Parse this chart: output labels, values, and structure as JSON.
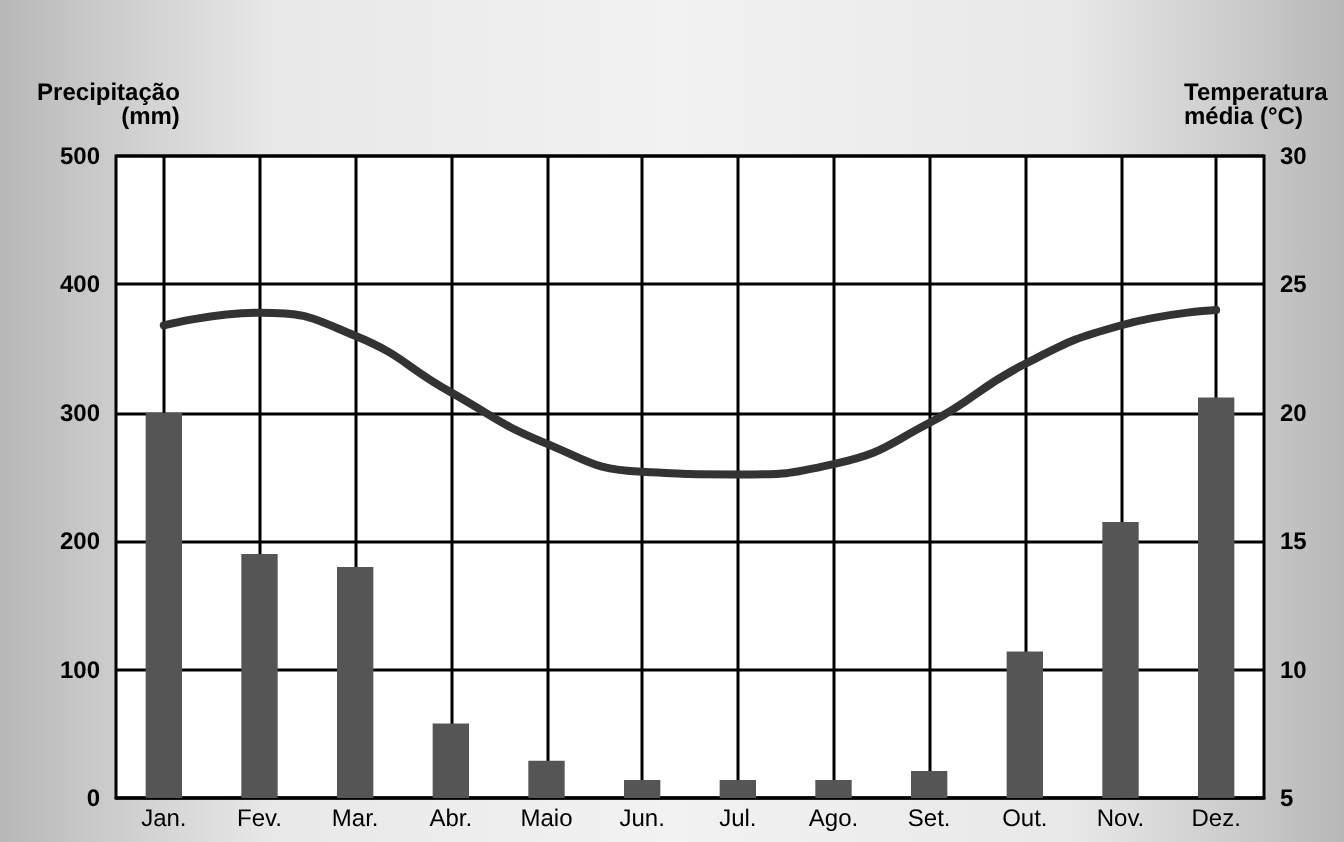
{
  "chart_data": {
    "type": "bar",
    "ylabel": "Precipitação\n(mm)",
    "y2label": "Temperatura\nmédia (°C)",
    "categories": [
      "Jan.",
      "Fev.",
      "Mar.",
      "Abr.",
      "Maio",
      "Jun.",
      "Jul.",
      "Ago.",
      "Set.",
      "Out.",
      "Nov.",
      "Dez."
    ],
    "series": [
      {
        "color": "#555555",
        "values": [
          300,
          190,
          180,
          58,
          29,
          14,
          14,
          14,
          21,
          114,
          215,
          312
        ]
      },
      {
        "type": "line",
        "axis": "y2",
        "color": "#333333",
        "values": [
          23.4,
          23.9,
          23.0,
          20.8,
          18.8,
          17.7,
          17.6,
          18.0,
          19.6,
          21.9,
          23.4,
          24.0
        ]
      }
    ],
    "ylim": [
      0,
      500
    ],
    "yticks": [
      0,
      100,
      200,
      300,
      400,
      500
    ],
    "y2lim": [
      5,
      30
    ],
    "y2ticks": [
      5,
      10,
      15,
      20,
      25,
      30
    ],
    "grid": true,
    "marker": "none"
  }
}
